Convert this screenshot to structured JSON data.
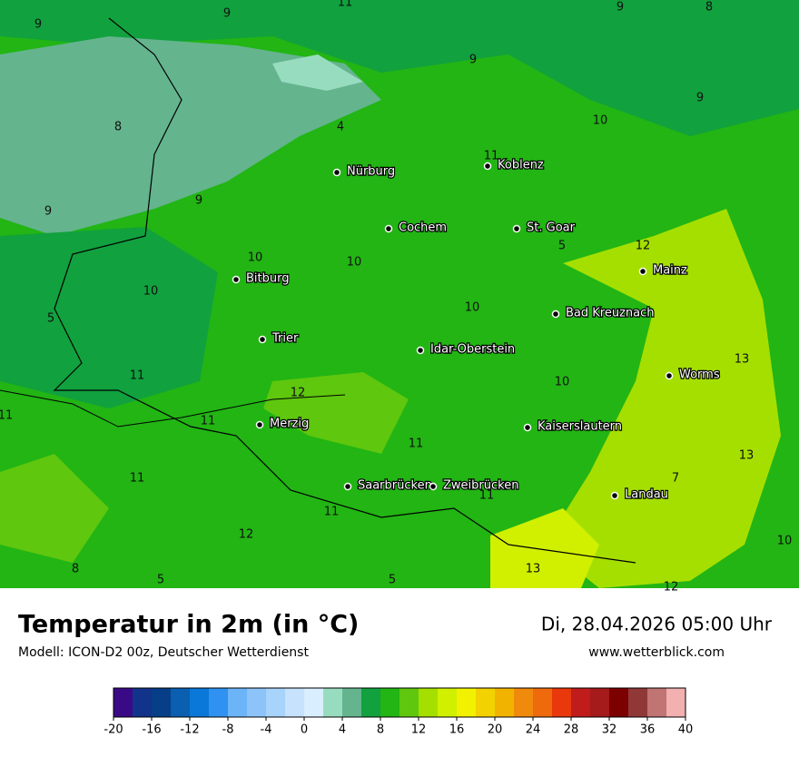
{
  "header": {
    "title": "Temperatur in 2m (in °C)",
    "model": "Modell: ICON-D2 00z, Deutscher Wetterdienst",
    "datetime": "Di, 28.04.2026 05:00 Uhr",
    "website": "www.wetterblick.com"
  },
  "map": {
    "cities": [
      "Nürburg",
      "Koblenz",
      "Cochem",
      "St. Goar",
      "Mainz",
      "Bitburg",
      "Bad Kreuznach",
      "Trier",
      "Idar-Oberstein",
      "Worms",
      "Merzig",
      "Kaiserslautern",
      "Saarbrücken",
      "Zweibrücken",
      "Landau"
    ],
    "isotherm_labels": [
      9,
      11,
      9,
      8,
      9,
      9,
      9,
      8,
      4,
      10,
      11,
      9,
      9,
      5,
      12,
      10,
      10,
      10,
      5,
      10,
      13,
      11,
      10,
      12,
      11,
      11,
      11,
      13,
      11,
      7,
      11,
      11,
      12,
      10,
      8,
      13,
      5,
      5,
      12
    ]
  },
  "colorbar": {
    "range": [
      -20,
      40
    ],
    "ticks": [
      -20,
      -16,
      -12,
      -8,
      -4,
      0,
      4,
      8,
      12,
      16,
      20,
      24,
      28,
      32,
      36,
      40
    ],
    "colors": [
      "#3a0a86",
      "#12338a",
      "#063f88",
      "#0a5fb0",
      "#0a78d8",
      "#2f92f0",
      "#6cb4f8",
      "#8cc4f9",
      "#a8d3fa",
      "#c6e2fc",
      "#d9eefe",
      "#98dcc0",
      "#64b48e",
      "#11a13e",
      "#22b514",
      "#5ec70e",
      "#a5df00",
      "#d0f000",
      "#f2f200",
      "#f2d200",
      "#f2b300",
      "#f08a0c",
      "#ee6a0c",
      "#e8380c",
      "#c01c1c",
      "#a51a1a",
      "#7d0000",
      "#903838",
      "#c07474",
      "#f2b0b0"
    ]
  }
}
